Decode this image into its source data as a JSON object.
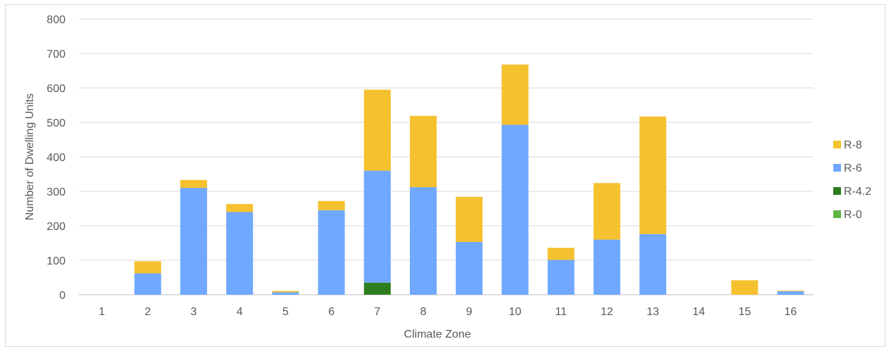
{
  "chart_data": {
    "type": "bar",
    "stacked": true,
    "categories": [
      "1",
      "2",
      "3",
      "4",
      "5",
      "6",
      "7",
      "8",
      "9",
      "10",
      "11",
      "12",
      "13",
      "14",
      "15",
      "16"
    ],
    "series": [
      {
        "name": "R-0",
        "color": "#5fb546",
        "values": [
          0,
          0,
          0,
          0,
          0,
          0,
          0,
          0,
          0,
          0,
          0,
          0,
          0,
          0,
          0,
          0
        ]
      },
      {
        "name": "R-4.2",
        "color": "#2e7d1f",
        "values": [
          0,
          0,
          0,
          0,
          0,
          0,
          35,
          0,
          0,
          0,
          0,
          0,
          0,
          0,
          0,
          0
        ]
      },
      {
        "name": "R-6",
        "color": "#70a8ff",
        "values": [
          0,
          62,
          310,
          240,
          7,
          245,
          325,
          312,
          153,
          493,
          101,
          160,
          176,
          0,
          0,
          10
        ]
      },
      {
        "name": "R-8",
        "color": "#f6c12f",
        "values": [
          0,
          35,
          23,
          23,
          4,
          27,
          235,
          207,
          131,
          175,
          35,
          164,
          341,
          0,
          42,
          2
        ]
      }
    ],
    "legend_order": [
      "R-8",
      "R-6",
      "R-4.2",
      "R-0"
    ],
    "xlabel": "Climate Zone",
    "ylabel": "Number of Dwelling Units",
    "ylim": [
      0,
      800
    ],
    "yticks": [
      0,
      100,
      200,
      300,
      400,
      500,
      600,
      700,
      800
    ],
    "grid": true,
    "legend_position": "right"
  }
}
